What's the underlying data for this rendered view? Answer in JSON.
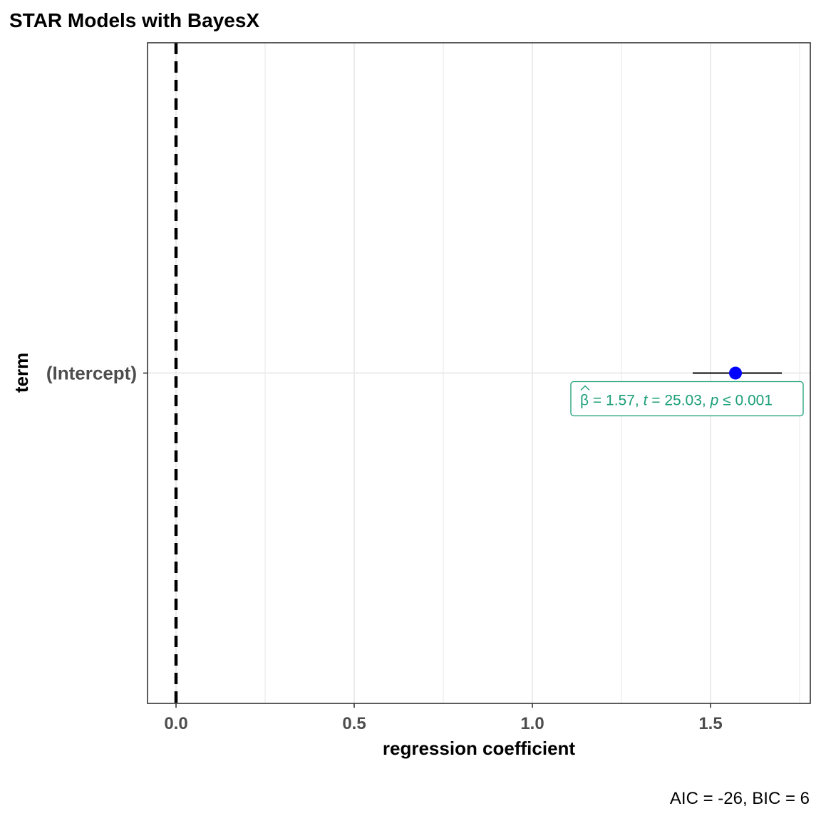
{
  "chart_data": {
    "type": "scatter",
    "title": "STAR Models with BayesX",
    "xlabel": "regression coefficient",
    "ylabel": "term",
    "xlim": [
      -0.08,
      1.78
    ],
    "x_ticks": [
      0.0,
      0.5,
      1.0,
      1.5
    ],
    "x_tick_labels": [
      "0.0",
      "0.5",
      "1.0",
      "1.5"
    ],
    "x_minor_ticks": [
      0.25,
      0.75,
      1.25,
      1.75
    ],
    "categories": [
      "(Intercept)"
    ],
    "points": [
      {
        "term": "(Intercept)",
        "estimate": 1.57,
        "ci_low": 1.45,
        "ci_high": 1.7,
        "label": {
          "beta_symbol": "β",
          "beta_value": "= 1.57,",
          "t_symbol": "t",
          "t_value": "= 25.03,",
          "p_symbol": "p",
          "p_value": "≤ 0.001"
        }
      }
    ],
    "reference_line": {
      "x": 0,
      "style": "dashed"
    },
    "caption": "AIC = -26, BIC = 6",
    "grid": true,
    "colors": {
      "point": "#0000ff",
      "label": "#1b9e77",
      "grid": "#ebebeb",
      "ticks": "#4d4d4d"
    }
  }
}
